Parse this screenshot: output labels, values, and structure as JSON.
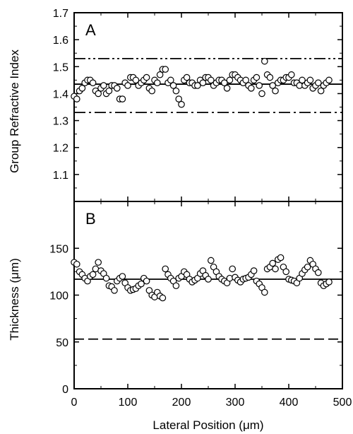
{
  "chart_data": [
    {
      "panel": "A",
      "type": "scatter",
      "panel_label": "A",
      "ylabel": "Group Refractive Index",
      "xlabel": "",
      "xlim": [
        0,
        500
      ],
      "ylim": [
        1.0,
        1.7
      ],
      "yticks": [
        "1.1",
        "1.2",
        "1.3",
        "1.4",
        "1.5",
        "1.6",
        "1.7"
      ],
      "reference_lines": [
        {
          "y": 1.53,
          "style": "dash-dot-dot"
        },
        {
          "y": 1.435,
          "style": "solid"
        },
        {
          "y": 1.33,
          "style": "dash-dot"
        }
      ],
      "series": [
        {
          "marker": "open-circle",
          "x": [
            0,
            5,
            10,
            15,
            20,
            25,
            30,
            35,
            40,
            45,
            50,
            55,
            60,
            65,
            70,
            75,
            80,
            85,
            90,
            95,
            100,
            105,
            110,
            115,
            120,
            125,
            130,
            135,
            140,
            145,
            150,
            155,
            160,
            165,
            170,
            175,
            180,
            185,
            190,
            195,
            200,
            205,
            210,
            215,
            220,
            225,
            230,
            235,
            240,
            245,
            250,
            255,
            260,
            265,
            270,
            275,
            280,
            285,
            290,
            295,
            300,
            305,
            310,
            315,
            320,
            325,
            330,
            335,
            340,
            345,
            350,
            355,
            360,
            365,
            370,
            375,
            380,
            385,
            390,
            395,
            400,
            405,
            410,
            415,
            420,
            425,
            430,
            435,
            440,
            445,
            450,
            455,
            460,
            465,
            470,
            475
          ],
          "y": [
            1.39,
            1.38,
            1.41,
            1.42,
            1.44,
            1.45,
            1.45,
            1.44,
            1.41,
            1.4,
            1.42,
            1.43,
            1.4,
            1.41,
            1.43,
            1.43,
            1.42,
            1.38,
            1.38,
            1.44,
            1.43,
            1.46,
            1.46,
            1.45,
            1.43,
            1.44,
            1.45,
            1.46,
            1.42,
            1.41,
            1.45,
            1.44,
            1.47,
            1.49,
            1.49,
            1.44,
            1.45,
            1.43,
            1.41,
            1.38,
            1.36,
            1.45,
            1.46,
            1.44,
            1.44,
            1.43,
            1.43,
            1.45,
            1.44,
            1.46,
            1.46,
            1.45,
            1.43,
            1.44,
            1.45,
            1.45,
            1.44,
            1.42,
            1.45,
            1.47,
            1.47,
            1.46,
            1.45,
            1.44,
            1.45,
            1.43,
            1.42,
            1.45,
            1.46,
            1.43,
            1.4,
            1.52,
            1.47,
            1.46,
            1.43,
            1.41,
            1.44,
            1.45,
            1.45,
            1.46,
            1.46,
            1.47,
            1.44,
            1.44,
            1.43,
            1.45,
            1.43,
            1.44,
            1.45,
            1.42,
            1.43,
            1.44,
            1.41,
            1.43,
            1.44,
            1.45
          ]
        }
      ]
    },
    {
      "panel": "B",
      "type": "scatter",
      "panel_label": "B",
      "ylabel": "Thickness (μm)",
      "xlabel": "Lateral Position (μm)",
      "xlim": [
        0,
        500
      ],
      "ylim": [
        0,
        200
      ],
      "yticks": [
        "0",
        "50",
        "100",
        "150"
      ],
      "xticks": [
        "0",
        "100",
        "200",
        "300",
        "400",
        "500"
      ],
      "reference_lines": [
        {
          "y": 117,
          "style": "solid"
        },
        {
          "y": 53,
          "style": "dashed"
        }
      ],
      "series": [
        {
          "marker": "open-circle",
          "x": [
            0,
            5,
            10,
            15,
            20,
            25,
            30,
            35,
            40,
            45,
            50,
            55,
            60,
            65,
            70,
            75,
            80,
            85,
            90,
            95,
            100,
            105,
            110,
            115,
            120,
            125,
            130,
            135,
            140,
            145,
            150,
            155,
            160,
            165,
            170,
            175,
            180,
            185,
            190,
            195,
            200,
            205,
            210,
            215,
            220,
            225,
            230,
            235,
            240,
            245,
            250,
            255,
            260,
            265,
            270,
            275,
            280,
            285,
            290,
            295,
            300,
            305,
            310,
            315,
            320,
            325,
            330,
            335,
            340,
            345,
            350,
            355,
            360,
            365,
            370,
            375,
            380,
            385,
            390,
            395,
            400,
            405,
            410,
            415,
            420,
            425,
            430,
            435,
            440,
            445,
            450,
            455,
            460,
            465,
            470,
            475
          ],
          "y": [
            135,
            133,
            125,
            122,
            118,
            115,
            120,
            122,
            128,
            135,
            126,
            123,
            118,
            110,
            109,
            105,
            115,
            118,
            120,
            113,
            108,
            105,
            106,
            107,
            110,
            112,
            118,
            115,
            105,
            100,
            98,
            103,
            99,
            97,
            128,
            122,
            118,
            115,
            110,
            118,
            120,
            125,
            122,
            117,
            114,
            116,
            118,
            123,
            126,
            121,
            117,
            137,
            130,
            125,
            120,
            117,
            115,
            113,
            118,
            128,
            119,
            116,
            114,
            117,
            118,
            119,
            122,
            126,
            115,
            112,
            108,
            103,
            128,
            130,
            134,
            128,
            138,
            140,
            130,
            125,
            117,
            116,
            115,
            113,
            118,
            123,
            127,
            130,
            137,
            133,
            128,
            124,
            113,
            110,
            112,
            114
          ]
        }
      ]
    }
  ]
}
